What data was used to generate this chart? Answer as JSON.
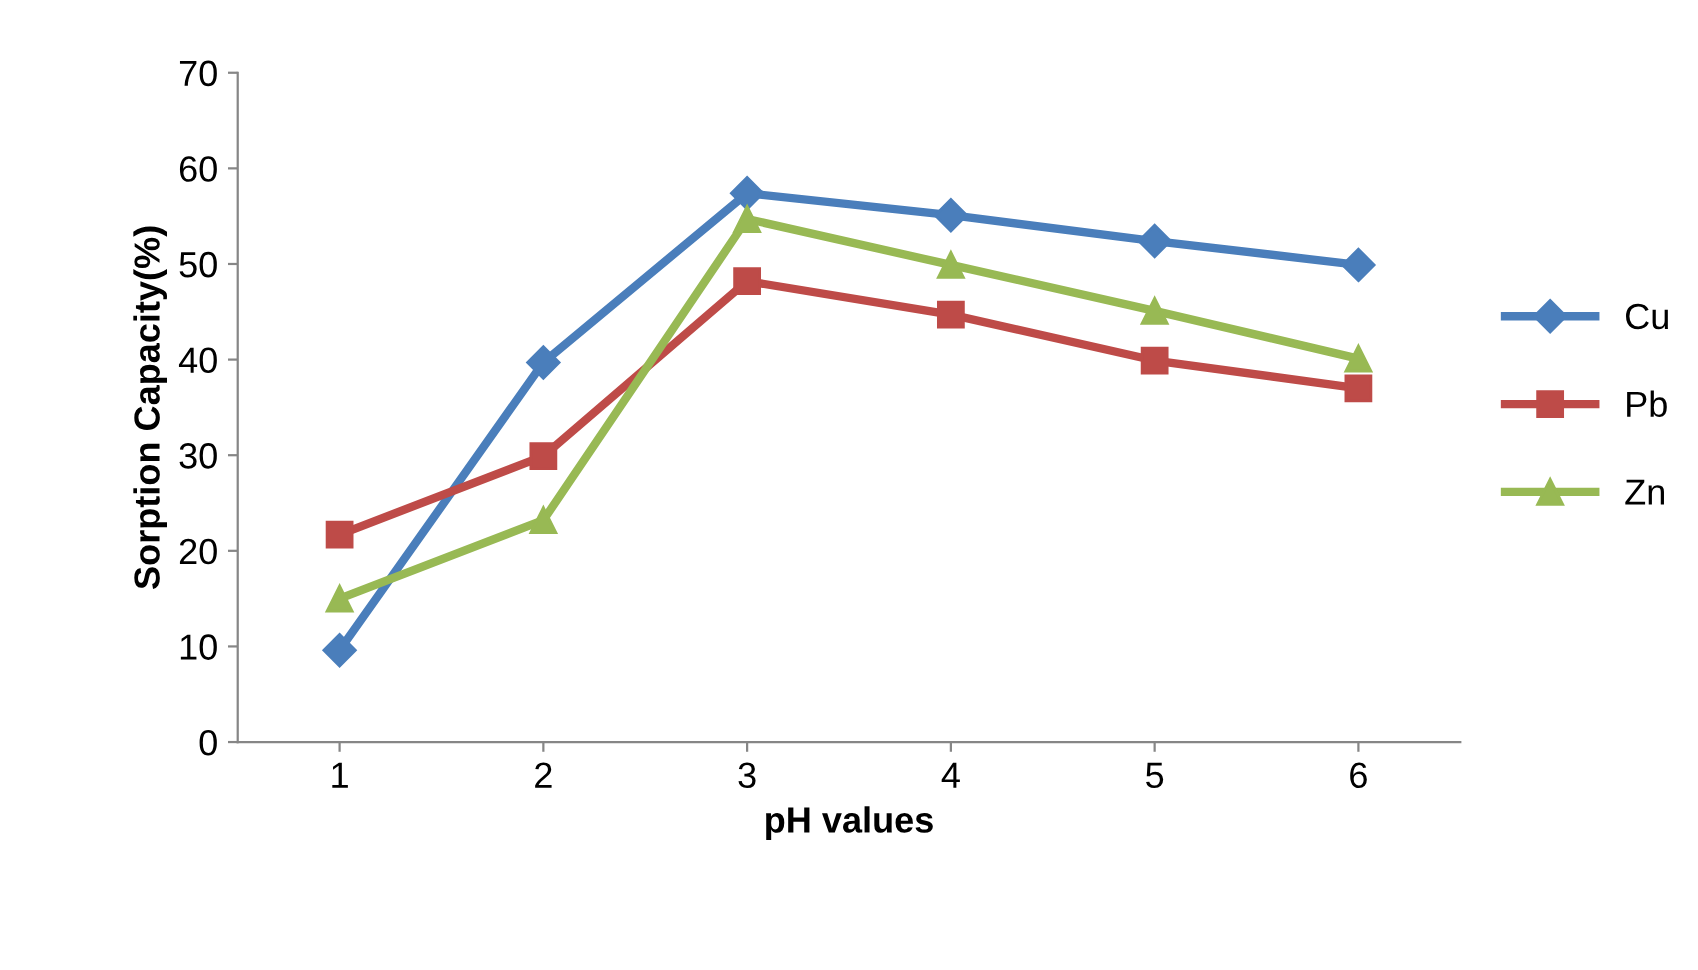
{
  "chart_data": {
    "type": "line",
    "xlabel": "pH values",
    "ylabel": "Sorption Capacity(%)",
    "categories": [
      "1",
      "2",
      "3",
      "4",
      "5",
      "6"
    ],
    "series": [
      {
        "name": "Cu",
        "color": "#4a7ebb",
        "marker": "diamond",
        "values": [
          9.6,
          39.7,
          57.4,
          55.1,
          52.4,
          49.9
        ]
      },
      {
        "name": "Pb",
        "color": "#be4b48",
        "marker": "square",
        "values": [
          21.7,
          29.9,
          48.2,
          44.7,
          39.9,
          37.0
        ]
      },
      {
        "name": "Zn",
        "color": "#98b954",
        "marker": "triangle",
        "values": [
          15.0,
          23.2,
          54.7,
          49.9,
          45.1,
          40.1
        ]
      }
    ],
    "ylim": [
      0,
      70
    ],
    "yticks": [
      0,
      10,
      20,
      30,
      40,
      50,
      60,
      70
    ],
    "grid": false,
    "legend": "right",
    "line_style": "solid"
  }
}
